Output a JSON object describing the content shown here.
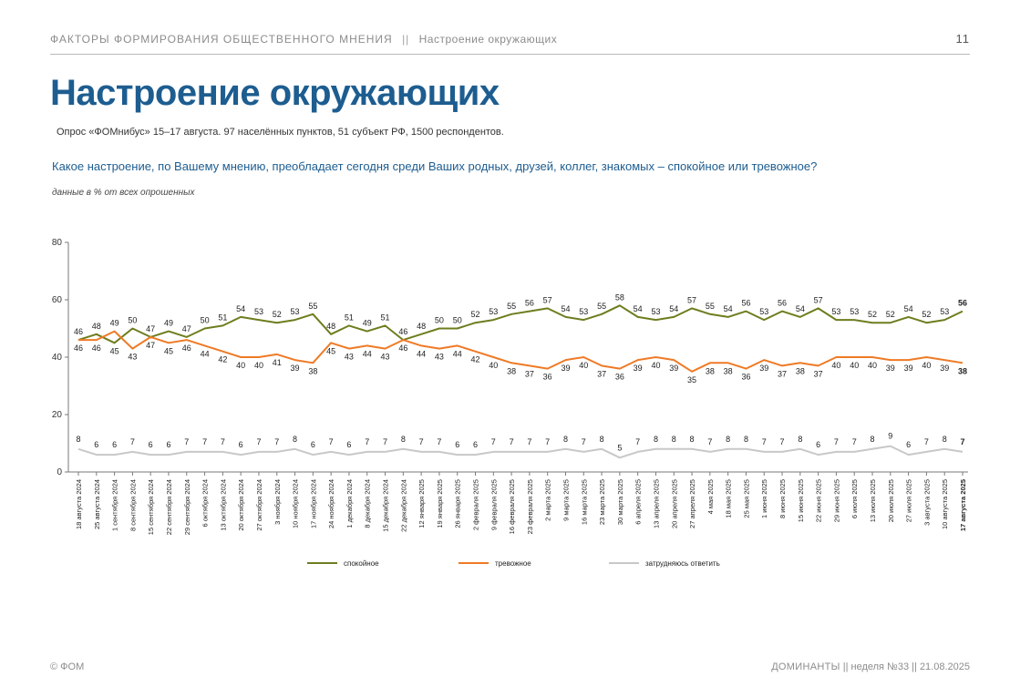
{
  "header": {
    "section": "ФАКТОРЫ ФОРМИРОВАНИЯ ОБЩЕСТВЕННОГО МНЕНИЯ",
    "separator": "||",
    "subsection": "Настроение окружающих",
    "page_number": "11"
  },
  "title": "Настроение окружающих",
  "survey_info": "Опрос «ФОМнибус» 15–17 августа. 97 населённых пунктов, 51 субъект РФ, 1500 респондентов.",
  "question": "Какое настроение, по Вашему мнению, преобладает сегодня среди Ваших родных, друзей, коллег, знакомых – спокойное или тревожное?",
  "note": "данные в % от всех опрошенных",
  "footer": {
    "copyright": "© ФОМ",
    "brand": "ДОМИНАНТЫ",
    "separator": "||",
    "issue": "неделя №33",
    "date": "21.08.2025"
  },
  "colors": {
    "calm": "#6e7d1e",
    "anxious": "#ef7a26",
    "undecided": "#c8c8c8",
    "title": "#1d5d90"
  },
  "chart_data": {
    "type": "line",
    "title": "",
    "xlabel": "",
    "ylabel": "",
    "ylim": [
      0,
      80
    ],
    "yticks": [
      0,
      20,
      40,
      60,
      80
    ],
    "grid": false,
    "legend_position": "bottom",
    "categories": [
      "18 августа 2024",
      "25 августа 2024",
      "1 сентября 2024",
      "8 сентября 2024",
      "15 сентября 2024",
      "22 сентября 2024",
      "29 сентября 2024",
      "6 октября 2024",
      "13 октября 2024",
      "20 октября 2024",
      "27 октября 2024",
      "3 ноября 2024",
      "10 ноября 2024",
      "17 ноября 2024",
      "24 ноября 2024",
      "1 декабря 2024",
      "8 декабря 2024",
      "15 декабря 2024",
      "22 декабря 2024",
      "12 января 2025",
      "19 января 2025",
      "26 января 2025",
      "2 февраля 2025",
      "9 февраля 2025",
      "16 февраля 2025",
      "23 февраля 2025",
      "2 марта 2025",
      "9 марта 2025",
      "16 марта 2025",
      "23 марта 2025",
      "30 марта 2025",
      "6 апреля 2025",
      "13 апреля 2025",
      "20 апреля 2025",
      "27 апреля 2025",
      "4 мая 2025",
      "18 мая 2025",
      "25 мая 2025",
      "1 июня 2025",
      "8 июня 2025",
      "15 июня 2025",
      "22 июня 2025",
      "29 июня 2025",
      "6 июля 2025",
      "13 июля 2025",
      "20 июля 2025",
      "27 июля 2025",
      "3 августа 2025",
      "10 августа 2025",
      "17 августа 2025"
    ],
    "series": [
      {
        "name": "спокойное",
        "values": [
          46,
          48,
          45,
          50,
          47,
          49,
          47,
          50,
          51,
          54,
          53,
          52,
          53,
          55,
          48,
          51,
          49,
          51,
          46,
          48,
          50,
          50,
          52,
          53,
          55,
          56,
          57,
          54,
          53,
          55,
          58,
          54,
          53,
          54,
          57,
          55,
          54,
          56,
          53,
          56,
          54,
          57,
          53,
          53,
          52,
          52,
          54,
          52,
          53,
          56
        ]
      },
      {
        "name": "тревожное",
        "values": [
          46,
          46,
          49,
          43,
          47,
          45,
          46,
          44,
          42,
          40,
          40,
          41,
          39,
          38,
          45,
          43,
          44,
          43,
          46,
          44,
          43,
          44,
          42,
          40,
          38,
          37,
          36,
          39,
          40,
          37,
          36,
          39,
          40,
          39,
          35,
          38,
          38,
          36,
          39,
          37,
          38,
          37,
          40,
          40,
          40,
          39,
          39,
          40,
          39,
          38
        ]
      },
      {
        "name": "затрудняюсь ответить",
        "values": [
          8,
          6,
          6,
          7,
          6,
          6,
          7,
          7,
          7,
          6,
          7,
          7,
          8,
          6,
          7,
          6,
          7,
          7,
          8,
          7,
          7,
          6,
          6,
          7,
          7,
          7,
          7,
          8,
          7,
          8,
          5,
          7,
          8,
          8,
          8,
          7,
          8,
          8,
          7,
          7,
          8,
          6,
          7,
          7,
          8,
          9,
          6,
          7,
          8,
          7
        ]
      }
    ]
  }
}
